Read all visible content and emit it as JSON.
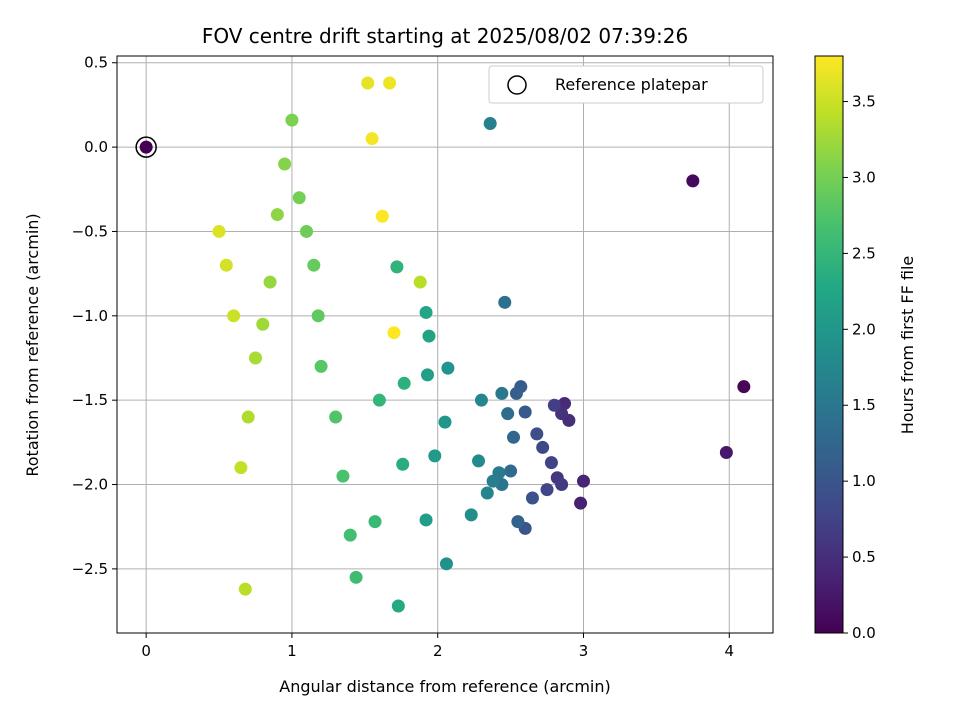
{
  "chart_data": {
    "type": "scatter",
    "title": "FOV centre drift starting at 2025/08/02 07:39:26",
    "xlabel": "Angular distance from reference (arcmin)",
    "ylabel": "Rotation from reference (arcmin)",
    "xlim": [
      -0.2,
      4.3
    ],
    "ylim": [
      -2.88,
      0.54
    ],
    "xticks": [
      0,
      1,
      2,
      3,
      4
    ],
    "xtick_labels": [
      "0",
      "1",
      "2",
      "3",
      "4"
    ],
    "yticks": [
      0.5,
      0.0,
      -0.5,
      -1.0,
      -1.5,
      -2.0,
      -2.5
    ],
    "ytick_labels": [
      "0.5",
      "0.0",
      "−0.5",
      "−1.0",
      "−1.5",
      "−2.0",
      "−2.5"
    ],
    "grid": true,
    "legend": {
      "position": "top-right",
      "entries": [
        "Reference platepar"
      ]
    },
    "reference_point": {
      "x": 0.0,
      "y": 0.0
    },
    "colorbar": {
      "label": "Hours from first FF file",
      "range": [
        0.0,
        3.8
      ],
      "ticks": [
        0.0,
        0.5,
        1.0,
        1.5,
        2.0,
        2.5,
        3.0,
        3.5
      ],
      "tick_labels": [
        "0.0",
        "0.5",
        "1.0",
        "1.5",
        "2.0",
        "2.5",
        "3.0",
        "3.5"
      ],
      "colormap": "viridis"
    },
    "points": [
      [
        0.0,
        0.0,
        0.0
      ],
      [
        4.1,
        -1.42,
        0.05
      ],
      [
        3.75,
        -0.2,
        0.1
      ],
      [
        3.98,
        -1.81,
        0.25
      ],
      [
        2.98,
        -2.11,
        0.35
      ],
      [
        3.0,
        -1.98,
        0.4
      ],
      [
        2.87,
        -1.52,
        0.45
      ],
      [
        2.9,
        -1.62,
        0.5
      ],
      [
        2.85,
        -1.58,
        0.55
      ],
      [
        2.82,
        -1.96,
        0.6
      ],
      [
        2.85,
        -2.0,
        0.65
      ],
      [
        2.8,
        -1.53,
        0.7
      ],
      [
        2.78,
        -1.87,
        0.75
      ],
      [
        2.75,
        -2.03,
        0.8
      ],
      [
        2.72,
        -1.78,
        0.85
      ],
      [
        2.68,
        -1.7,
        0.9
      ],
      [
        2.65,
        -2.08,
        0.95
      ],
      [
        2.6,
        -2.26,
        1.0
      ],
      [
        2.6,
        -1.57,
        1.05
      ],
      [
        2.57,
        -1.42,
        1.1
      ],
      [
        2.54,
        -1.46,
        1.15
      ],
      [
        2.55,
        -2.22,
        1.2
      ],
      [
        2.52,
        -1.72,
        1.25
      ],
      [
        2.5,
        -1.92,
        1.3
      ],
      [
        2.48,
        -1.58,
        1.35
      ],
      [
        2.46,
        -0.92,
        1.4
      ],
      [
        2.44,
        -2.0,
        1.45
      ],
      [
        2.44,
        -1.46,
        1.5
      ],
      [
        2.42,
        -1.93,
        1.55
      ],
      [
        2.38,
        -1.98,
        1.6
      ],
      [
        2.36,
        0.14,
        1.65
      ],
      [
        2.34,
        -2.05,
        1.7
      ],
      [
        2.3,
        -1.5,
        1.75
      ],
      [
        2.28,
        -1.86,
        1.8
      ],
      [
        2.23,
        -2.18,
        1.85
      ],
      [
        2.06,
        -2.47,
        1.9
      ],
      [
        2.07,
        -1.31,
        1.95
      ],
      [
        2.05,
        -1.63,
        2.0
      ],
      [
        1.98,
        -1.83,
        2.05
      ],
      [
        1.92,
        -2.21,
        2.1
      ],
      [
        1.93,
        -1.35,
        2.15
      ],
      [
        1.94,
        -1.12,
        2.2
      ],
      [
        1.92,
        -0.98,
        2.25
      ],
      [
        1.73,
        -2.72,
        2.3
      ],
      [
        1.76,
        -1.88,
        2.35
      ],
      [
        1.77,
        -1.4,
        2.4
      ],
      [
        1.72,
        -0.71,
        2.45
      ],
      [
        1.6,
        -1.5,
        2.5
      ],
      [
        1.57,
        -2.22,
        2.55
      ],
      [
        1.44,
        -2.55,
        2.6
      ],
      [
        1.4,
        -2.3,
        2.65
      ],
      [
        1.35,
        -1.95,
        2.7
      ],
      [
        1.3,
        -1.6,
        2.75
      ],
      [
        1.2,
        -1.3,
        2.8
      ],
      [
        1.18,
        -1.0,
        2.85
      ],
      [
        1.15,
        -0.7,
        2.9
      ],
      [
        1.1,
        -0.5,
        2.95
      ],
      [
        1.05,
        -0.3,
        3.0
      ],
      [
        1.0,
        0.16,
        3.05
      ],
      [
        0.95,
        -0.1,
        3.1
      ],
      [
        0.9,
        -0.4,
        3.15
      ],
      [
        0.85,
        -0.8,
        3.2
      ],
      [
        0.8,
        -1.05,
        3.25
      ],
      [
        0.75,
        -1.25,
        3.3
      ],
      [
        0.7,
        -1.6,
        3.35
      ],
      [
        0.68,
        -2.62,
        3.4
      ],
      [
        0.65,
        -1.9,
        3.45
      ],
      [
        0.6,
        -1.0,
        3.5
      ],
      [
        0.55,
        -0.7,
        3.55
      ],
      [
        0.5,
        -0.5,
        3.6
      ],
      [
        1.52,
        0.38,
        3.65
      ],
      [
        1.67,
        0.38,
        3.7
      ],
      [
        1.55,
        0.05,
        3.75
      ],
      [
        1.62,
        -0.41,
        3.78
      ],
      [
        1.7,
        -1.1,
        3.8
      ],
      [
        1.88,
        -0.8,
        3.4
      ]
    ]
  }
}
